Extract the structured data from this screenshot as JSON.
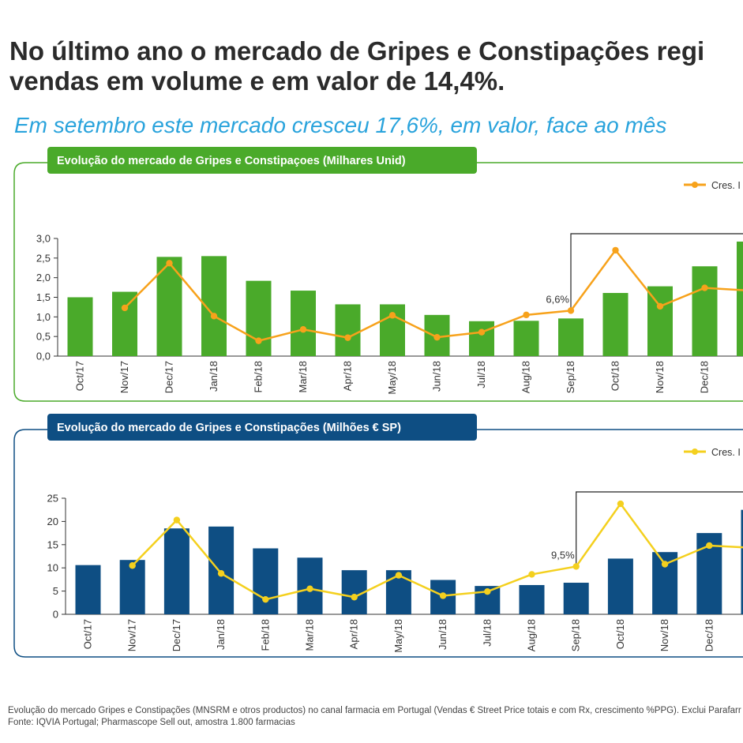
{
  "headline": {
    "line1": "No último ano o mercado de Gripes e Constipações regi",
    "line2": "vendas em volume e em valor de 14,4%."
  },
  "subheadline": "Em setembro este mercado cresceu 17,6%, em valor, face ao mês",
  "footnotes": {
    "line1": "Evolução do mercado Gripes e Constipações (MNSRM e otros productos) no canal farmacia em Portugal (Vendas € Street Price totais e com Rx, crescimento %PPG). Exclui Parafarr",
    "line2": "Fonte: IQVIA Portugal; Pharmascope Sell out, amostra 1.800 farmacias"
  },
  "colors": {
    "green": "#4aaa2a",
    "orange": "#f7a21b",
    "navy": "#0e4e83",
    "yellow": "#f4d01e",
    "subhead_blue": "#29a3dc"
  },
  "chart_data": [
    {
      "type": "bar",
      "title": "Evolução do mercado de Gripes e Constipaçoes (Milhares Unid)",
      "legend": "Cres. I",
      "legend_position": "top-right",
      "categories": [
        "Oct/17",
        "Nov/17",
        "Dec/17",
        "Jan/18",
        "Feb/18",
        "Mar/18",
        "Apr/18",
        "May/18",
        "Jun/18",
        "Jul/18",
        "Aug/18",
        "Sep/18",
        "Oct/18",
        "Nov/18",
        "Dec/18",
        ""
      ],
      "values": [
        1.5,
        1.64,
        2.53,
        2.55,
        1.92,
        1.67,
        1.32,
        1.32,
        1.05,
        0.89,
        0.9,
        0.96,
        1.61,
        1.78,
        2.29,
        2.92
      ],
      "line_values": [
        null,
        1.23,
        2.37,
        1.02,
        0.39,
        0.68,
        0.47,
        1.04,
        0.48,
        0.61,
        1.05,
        1.16,
        2.7,
        1.27,
        1.74,
        1.67
      ],
      "yticks": [
        "0,0",
        "0,5",
        "1,0",
        "1,5",
        "2,0",
        "2,5",
        "3,0"
      ],
      "ylim": [
        0,
        3
      ],
      "annotation": "6,6%",
      "annotation_index": 11,
      "highlight_from_index": 11,
      "bar_color": "#4aaa2a",
      "line_color": "#f7a21b",
      "header_color": "#4aaa2a"
    },
    {
      "type": "bar",
      "title": "Evolução do mercado de Gripes e Constipações (Milhões € SP)",
      "legend": "Cres. I",
      "legend_position": "top-right",
      "categories": [
        "Oct/17",
        "Nov/17",
        "Dec/17",
        "Jan/18",
        "Feb/18",
        "Mar/18",
        "Apr/18",
        "May/18",
        "Jun/18",
        "Jul/18",
        "Aug/18",
        "Sep/18",
        "Oct/18",
        "Nov/18",
        "Dec/18",
        ""
      ],
      "values": [
        10.6,
        11.7,
        18.5,
        18.9,
        14.2,
        12.2,
        9.5,
        9.5,
        7.4,
        6.1,
        6.3,
        6.8,
        12.0,
        13.4,
        17.5,
        22.5
      ],
      "line_values": [
        null,
        10.5,
        20.3,
        8.8,
        3.2,
        5.5,
        3.7,
        8.4,
        4.0,
        4.9,
        8.6,
        10.3,
        23.8,
        10.8,
        14.8,
        14.3
      ],
      "yticks": [
        "0",
        "5",
        "10",
        "15",
        "20",
        "25"
      ],
      "ylim": [
        0,
        25
      ],
      "annotation": "9,5%",
      "annotation_index": 11,
      "highlight_from_index": 11,
      "bar_color": "#0e4e83",
      "line_color": "#f4d01e",
      "header_color": "#0e4e83"
    }
  ]
}
